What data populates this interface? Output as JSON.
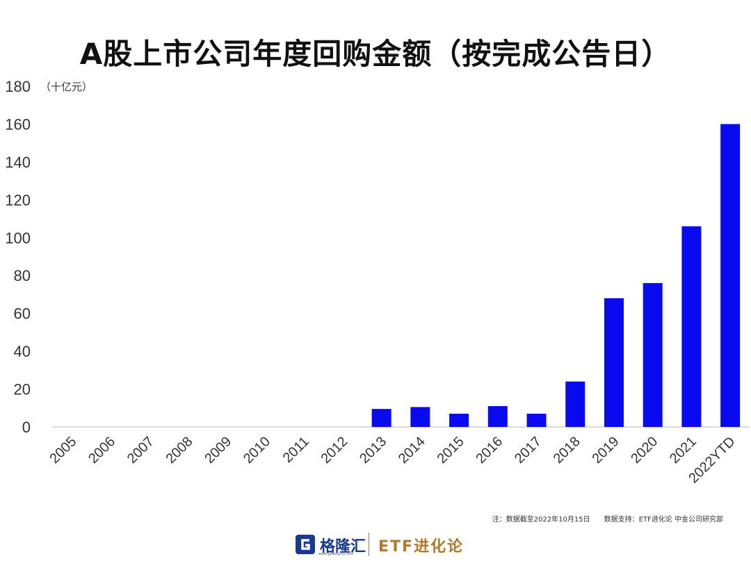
{
  "title": "A股上市公司年度回购金额（按完成公告日）",
  "note": "注：数据截至2022年10月15日　　数据支持：ETF进化论  中金公司研究部",
  "footer": {
    "logo_left": "格隆汇",
    "logo_left_sub": "www.gelonghui.com",
    "logo_right": "ETF进化论"
  },
  "colors": {
    "bar": "#0a0af0",
    "axis": "#cfcfcf",
    "text": "#333333"
  },
  "chart_data": {
    "type": "bar",
    "title": "A股上市公司年度回购金额（按完成公告日）",
    "unit_label": "（十亿元）",
    "xlabel": "",
    "ylabel": "",
    "ylim": [
      0,
      180
    ],
    "yticks": [
      0,
      20,
      40,
      60,
      80,
      100,
      120,
      140,
      160,
      180
    ],
    "grid": false,
    "categories": [
      "2005",
      "2006",
      "2007",
      "2008",
      "2009",
      "2010",
      "2011",
      "2012",
      "2013",
      "2014",
      "2015",
      "2016",
      "2017",
      "2018",
      "2019",
      "2020",
      "2021",
      "2022YTD"
    ],
    "values": [
      0,
      0,
      0,
      0,
      0,
      0,
      0,
      0,
      9.5,
      10.5,
      7,
      11,
      7,
      24,
      68,
      76,
      106,
      160
    ]
  }
}
